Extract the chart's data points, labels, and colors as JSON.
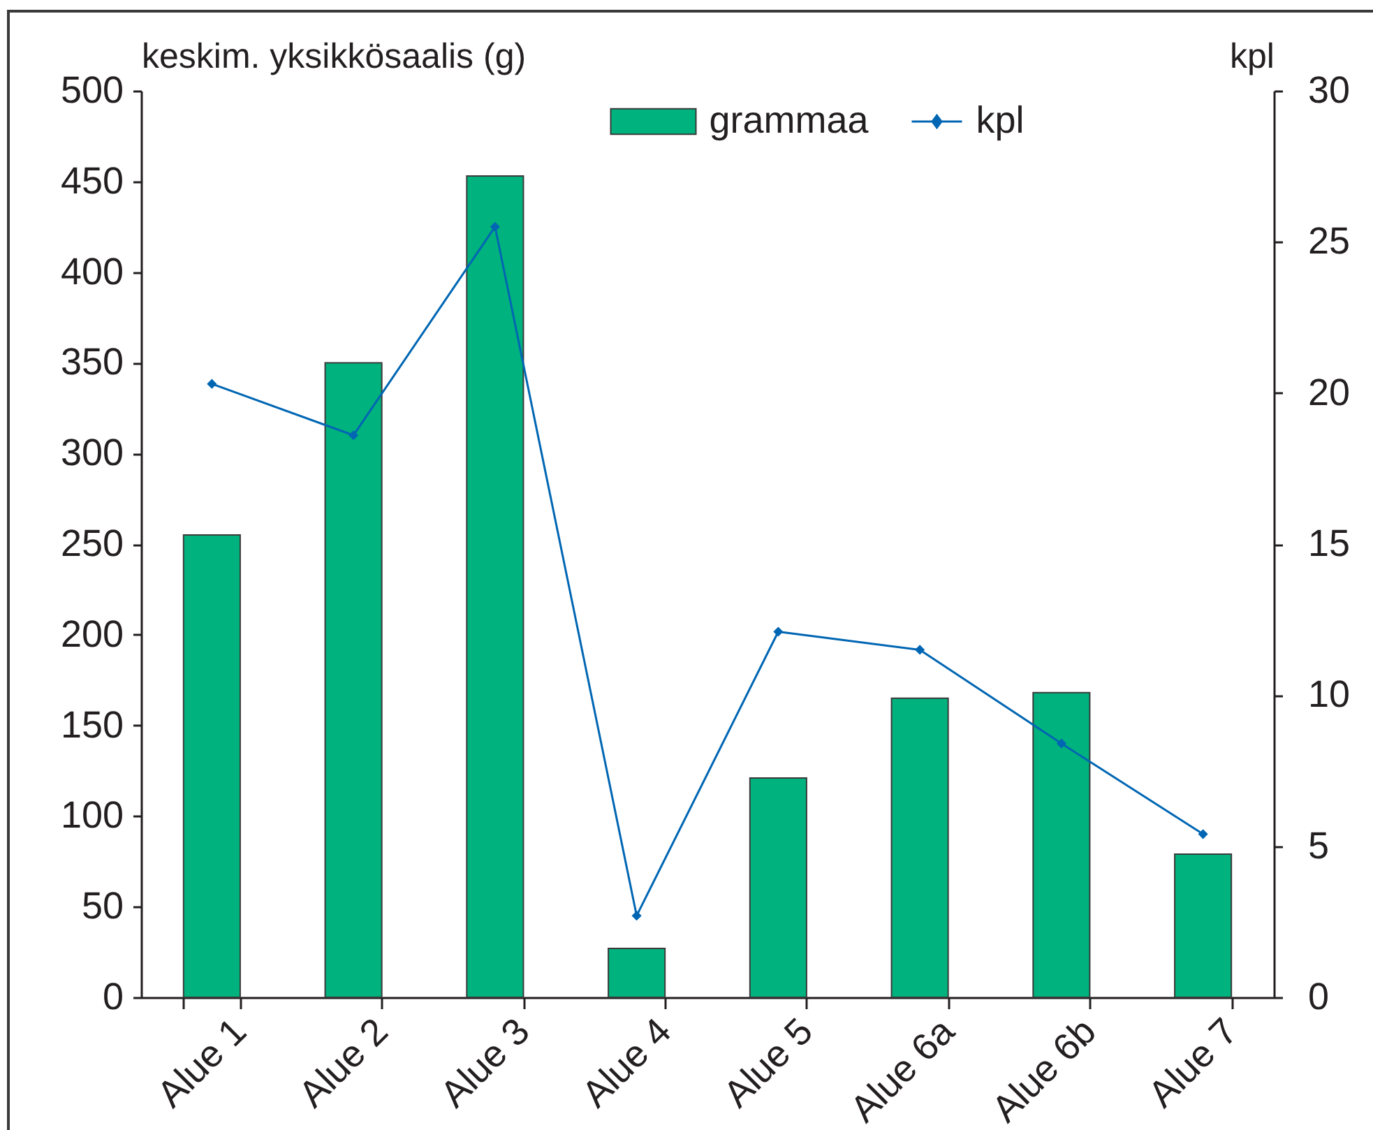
{
  "chart_data": {
    "type": "bar",
    "categories": [
      "Alue 1",
      "Alue 2",
      "Alue 3",
      "Alue 4",
      "Alue 5",
      "Alue 6a",
      "Alue 6b",
      "Alue 7"
    ],
    "ylabel": "keskim. yksikkösaalis (g)",
    "y2label": "kpl",
    "ylim": [
      0,
      500
    ],
    "yticks": [
      0,
      50,
      100,
      150,
      200,
      250,
      300,
      350,
      400,
      450,
      500
    ],
    "y2lim": [
      0,
      30
    ],
    "y2ticks": [
      0,
      5,
      10,
      15,
      20,
      25,
      30
    ],
    "legend": "top",
    "marker": "diamond",
    "series": [
      {
        "name": "grammaa",
        "color": "#00b27d",
        "values": [
          255,
          350,
          453,
          27,
          121,
          165,
          168,
          79
        ]
      },
      {
        "name": "kpl",
        "type": "line",
        "axis": "y2",
        "color": "#0066b3",
        "values": [
          20.3,
          18.6,
          25.5,
          2.7,
          12.1,
          11.5,
          8.4,
          5.4
        ]
      }
    ]
  }
}
